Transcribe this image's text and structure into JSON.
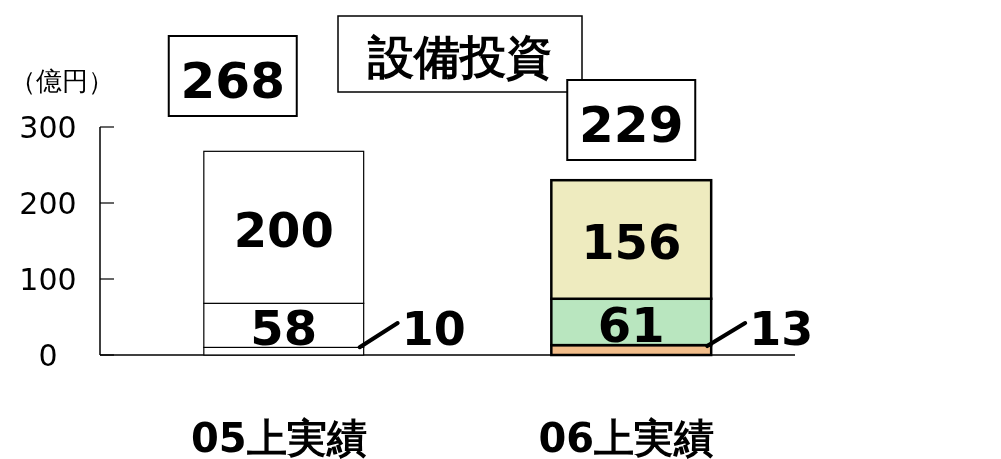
{
  "chart_data": {
    "type": "bar",
    "stacked": true,
    "title": "設備投資",
    "ylabel": "（億円）",
    "categories": [
      "05上実績",
      "06上実績"
    ],
    "series": [
      {
        "colors": [
          "#ffffff",
          "#f2bd8a"
        ],
        "values": [
          10,
          13
        ]
      },
      {
        "colors": [
          "#ffffff",
          "#b9e6bf"
        ],
        "values": [
          58,
          61
        ]
      },
      {
        "colors": [
          "#ffffff",
          "#eeebbf"
        ],
        "values": [
          200,
          156
        ]
      }
    ],
    "ylim": [
      0,
      300
    ],
    "yticks": [
      0,
      100,
      200,
      300
    ],
    "data_labels": true,
    "totals": [
      "268",
      "229"
    ],
    "grid": false
  }
}
